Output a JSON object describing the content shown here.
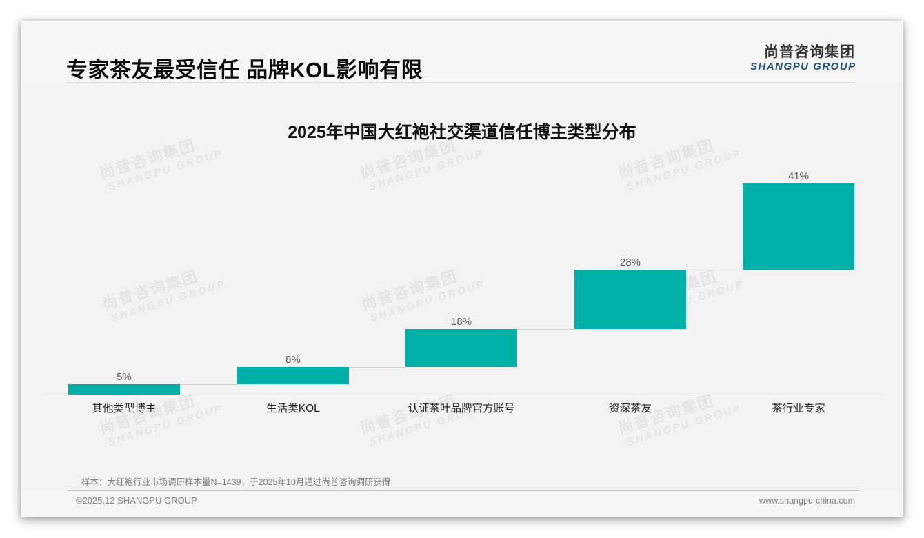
{
  "header": {
    "title": "专家茶友最受信任 品牌KOL影响有限",
    "logo_cn": "尚普咨询集团",
    "logo_en": "SHANGPU GROUP"
  },
  "watermark": {
    "cn": "尚普咨询集团",
    "en": "SHANGPU GROUP"
  },
  "colors": {
    "bar": "#00afa7",
    "logo_en": "#1e4f7a"
  },
  "chart_data": {
    "type": "bar",
    "subtype": "waterfall",
    "title": "2025年中国大红袍社交渠道信任博主类型分布",
    "categories": [
      "其他类型博主",
      "生活类KOL",
      "认证茶叶品牌官方账号",
      "资深茶友",
      "茶行业专家"
    ],
    "values": [
      5,
      8,
      18,
      28,
      41
    ],
    "value_labels": [
      "5%",
      "8%",
      "18%",
      "28%",
      "41%"
    ],
    "cumulative_start": [
      0,
      5,
      13,
      31,
      59
    ],
    "cumulative_end": [
      5,
      13,
      31,
      59,
      100
    ],
    "xlabel": "",
    "ylabel": "",
    "ylim": [
      0,
      100
    ],
    "grid": false,
    "legend": "none",
    "connector_lines": true
  },
  "footer": {
    "note": "样本：大红袍行业市场调研样本量N=1439，于2025年10月通过尚普咨询调研获得",
    "copyright": "©2025.12 SHANGPU GROUP",
    "website": "www.shangpu-china.com"
  }
}
